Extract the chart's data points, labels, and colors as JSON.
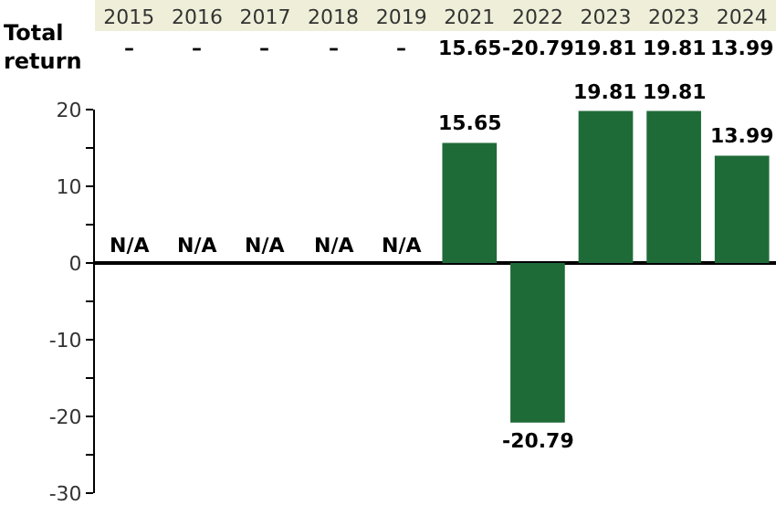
{
  "chart_data": {
    "type": "bar",
    "categories": [
      "2015",
      "2016",
      "2017",
      "2018",
      "2019",
      "2021",
      "2022",
      "2023",
      "2023",
      "2024"
    ],
    "values": [
      null,
      null,
      null,
      null,
      null,
      15.65,
      -20.79,
      19.81,
      19.81,
      13.99
    ],
    "value_labels": [
      "N/A",
      "N/A",
      "N/A",
      "N/A",
      "N/A",
      "15.65",
      "-20.79",
      "19.81",
      "19.81",
      "13.99"
    ],
    "color": "#1f6b38",
    "ylim": [
      -30,
      20
    ],
    "yticks": [
      -30,
      {
        "value": -25,
        "label": null
      },
      -20,
      {
        "value": -15,
        "label": null
      },
      -10,
      {
        "value": -5,
        "label": null
      },
      0,
      {
        "value": 5,
        "label": null
      },
      10,
      {
        "value": 15,
        "label": null
      },
      20
    ],
    "legend": false,
    "annotations": [
      "Total return",
      "–",
      "–",
      "–",
      "–",
      "–",
      "15.65",
      "-20.79",
      "19.81",
      "19.81",
      "13.99"
    ]
  }
}
